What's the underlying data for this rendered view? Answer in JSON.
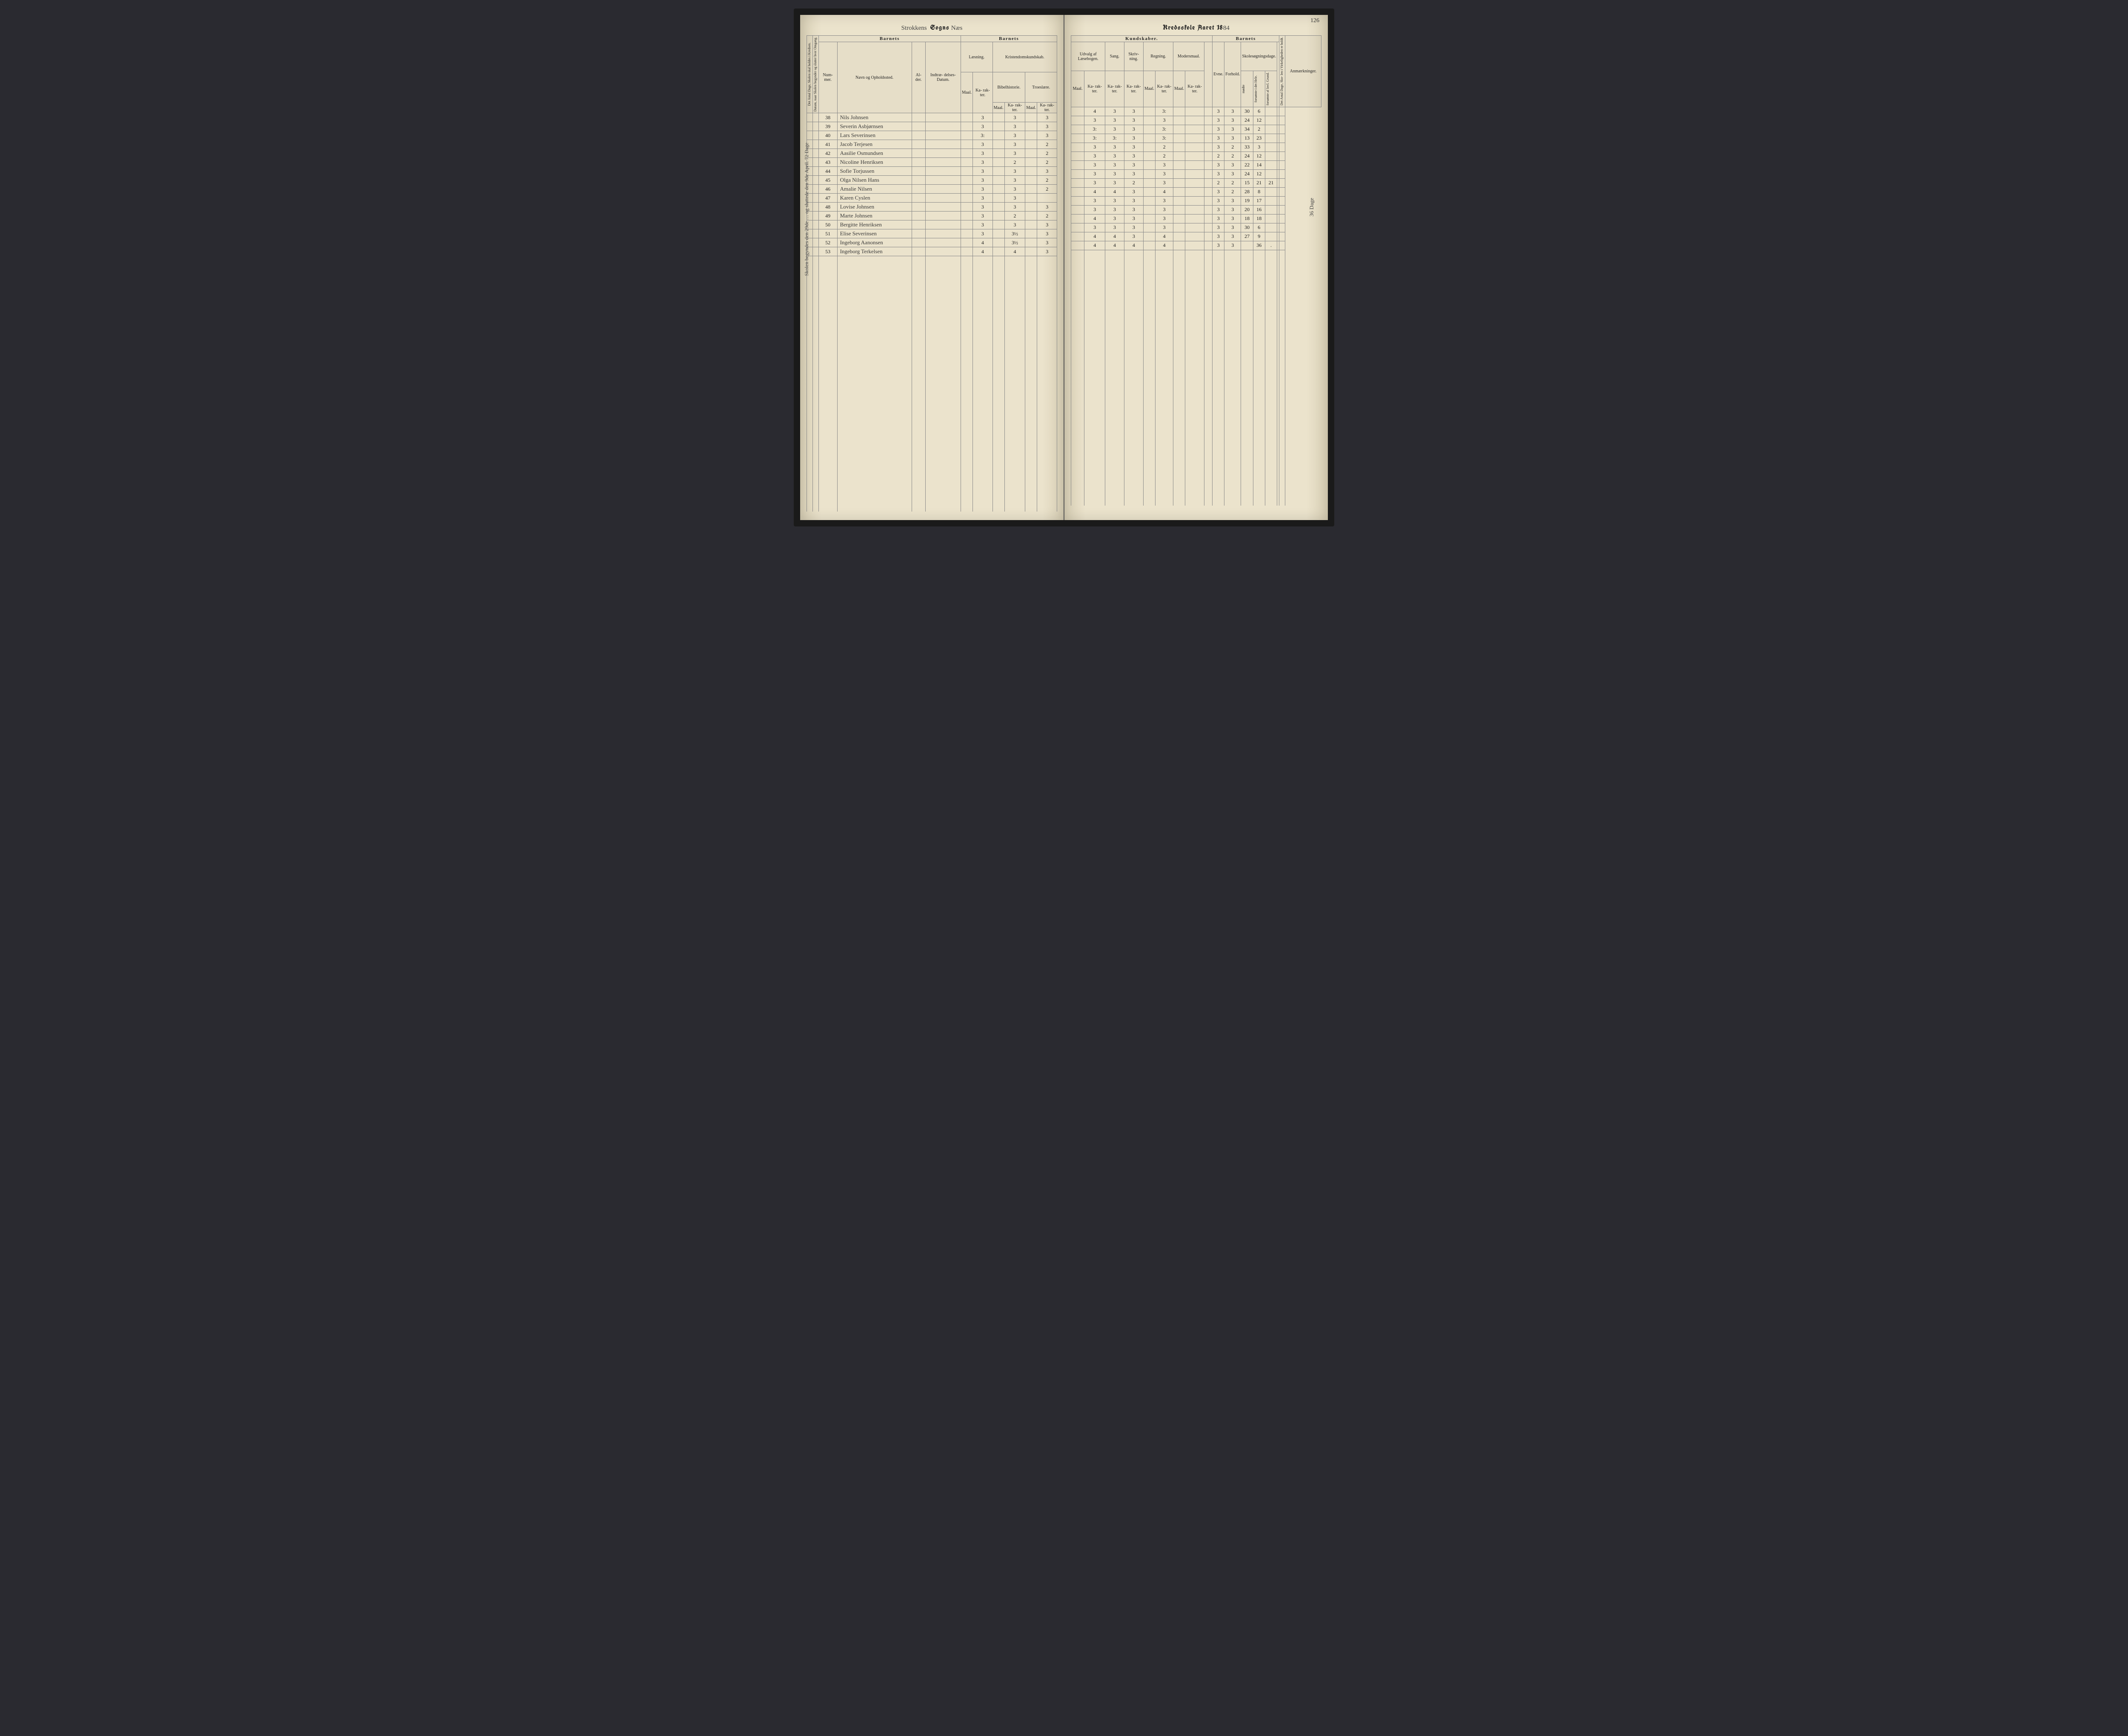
{
  "page_number": "126",
  "left_title": {
    "script1": "Strokkens",
    "print": "Sogns",
    "script2": "Næs"
  },
  "right_title": {
    "print1": "Kredsskole Aaret 18",
    "script": "84"
  },
  "side_note_left": "Skolen begyndes den 29de … og sluttede den 9de April.   72 Dage",
  "side_note_right": "36 Dage",
  "headers_left": {
    "col1": "Det Antal Dage, Skolen skal holdes i Kredsen.",
    "col2": "Datum, naar Skolen begynder og slutter hver Omgang.",
    "barnets": "Barnets",
    "nummer": "Num-\nmer.",
    "navn": "Navn og Opholdssted.",
    "alder": "Al-\nder.",
    "indtr": "Indtræ-\ndelses-\nDatum.",
    "barnets2": "Barnets",
    "laesning": "Læsning.",
    "kristen": "Kristendomskundskab.",
    "maal": "Maal.",
    "karakter": "Ka-\nrak-\nter.",
    "bibel": "Bibelhistorie.",
    "troes": "Troeslære."
  },
  "headers_right": {
    "kundskaber": "Kundskaber.",
    "udvalg": "Udvalg af\nLæsebogen.",
    "sang": "Sang.",
    "skriv": "Skriv-\nning.",
    "regning": "Regning.",
    "moders": "Modersmaal.",
    "maal": "Maal.",
    "karakter": "Ka-\nrak-\nter.",
    "barnets": "Barnets",
    "evne": "Evne.",
    "forhold": "Forhold.",
    "skoles": "Skolesøgningsdage.",
    "modte": "mødte",
    "fors1": "forsømte i\ndet Hele.",
    "fors2": "forsømte af\nlovl. Grund.",
    "antal": "Det Antal Dage, Sko-\nlen i Virkeligheden\ner holdt.",
    "anm": "Anmærkninger."
  },
  "rows": [
    {
      "num": "38",
      "name": "Nils Johnsen",
      "l_k": "3",
      "b_k": "3",
      "t_k": "3",
      "u_m": "",
      "u_k": "4",
      "sang": "3",
      "skriv": "3",
      "r_k": "3:",
      "evne": "3",
      "forhold": "3",
      "modte": "30",
      "f1": "6",
      "f2": ""
    },
    {
      "num": "39",
      "name": "Severin Asbjørnsen",
      "l_k": "3",
      "b_k": "3",
      "t_k": "3",
      "u_m": "",
      "u_k": "3",
      "sang": "3",
      "skriv": "3",
      "r_k": "3",
      "evne": "3",
      "forhold": "3",
      "modte": "24",
      "f1": "12",
      "f2": ""
    },
    {
      "num": "40",
      "name": "Lars Severinsen",
      "l_k": "3:",
      "b_k": "3",
      "t_k": "3",
      "u_m": "",
      "u_k": "3:",
      "sang": "3",
      "skriv": "3",
      "r_k": "3:",
      "evne": "3",
      "forhold": "3",
      "modte": "34",
      "f1": "2",
      "f2": ""
    },
    {
      "num": "41",
      "name": "Jacob Terjesen",
      "l_k": "3",
      "b_k": "3",
      "t_k": "2",
      "u_m": "",
      "u_k": "3:",
      "sang": "3:",
      "skriv": "3",
      "r_k": "3:",
      "evne": "3",
      "forhold": "3",
      "modte": "13",
      "f1": "23",
      "f2": ""
    },
    {
      "num": "42",
      "name": "Aasilie Osmundsen",
      "l_k": "3",
      "b_k": "3",
      "t_k": "2",
      "u_m": "",
      "u_k": "3",
      "sang": "3",
      "skriv": "3",
      "r_k": "2",
      "evne": "3",
      "forhold": "2",
      "modte": "33",
      "f1": "3",
      "f2": ""
    },
    {
      "num": "43",
      "name": "Nicoline Henriksen",
      "l_k": "3",
      "b_k": "2",
      "t_k": "2",
      "u_m": "",
      "u_k": "3",
      "sang": "3",
      "skriv": "3",
      "r_k": "2",
      "evne": "2",
      "forhold": "2",
      "modte": "24",
      "f1": "12",
      "f2": ""
    },
    {
      "num": "44",
      "name": "Sofie Torjussen",
      "l_k": "3",
      "b_k": "3",
      "t_k": "3",
      "u_m": "",
      "u_k": "3",
      "sang": "3",
      "skriv": "3",
      "r_k": "3",
      "evne": "3",
      "forhold": "3",
      "modte": "22",
      "f1": "14",
      "f2": ""
    },
    {
      "num": "45",
      "name": "Olga Nilsen Hans",
      "l_k": "3",
      "b_k": "3",
      "t_k": "2",
      "u_m": "",
      "u_k": "3",
      "sang": "3",
      "skriv": "3",
      "r_k": "3",
      "evne": "3",
      "forhold": "3",
      "modte": "24",
      "f1": "12",
      "f2": ""
    },
    {
      "num": "46",
      "name": "Amalie Nilsen",
      "l_k": "3",
      "b_k": "3",
      "t_k": "2",
      "u_m": "",
      "u_k": "3",
      "sang": "3",
      "skriv": "2",
      "r_k": "3",
      "evne": "2",
      "forhold": "2",
      "modte": "15",
      "f1": "21",
      "f2": "21"
    },
    {
      "num": "47",
      "name": "Karen Cyslen",
      "l_k": "3",
      "b_k": "3",
      "t_k": "",
      "u_m": "",
      "u_k": "4",
      "sang": "4",
      "skriv": "3",
      "r_k": "4",
      "evne": "3",
      "forhold": "2",
      "modte": "28",
      "f1": "8",
      "f2": ""
    },
    {
      "num": "48",
      "name": "Lovise Johnsen",
      "l_k": "3",
      "b_k": "3",
      "t_k": "3",
      "u_m": "",
      "u_k": "3",
      "sang": "3",
      "skriv": "3",
      "r_k": "3",
      "evne": "3",
      "forhold": "3",
      "modte": "19",
      "f1": "17",
      "f2": ""
    },
    {
      "num": "49",
      "name": "Marte Johnsen",
      "l_k": "3",
      "b_k": "2",
      "t_k": "2",
      "u_m": "",
      "u_k": "3",
      "sang": "3",
      "skriv": "3",
      "r_k": "3",
      "evne": "3",
      "forhold": "3",
      "modte": "20",
      "f1": "16",
      "f2": ""
    },
    {
      "num": "50",
      "name": "Bergitte Henriksen",
      "l_k": "3",
      "b_k": "3",
      "t_k": "3",
      "u_m": "",
      "u_k": "4",
      "sang": "3",
      "skriv": "3",
      "r_k": "3",
      "evne": "3",
      "forhold": "3",
      "modte": "18",
      "f1": "18",
      "f2": ""
    },
    {
      "num": "51",
      "name": "Elise Severinsen",
      "l_k": "3",
      "b_k": "3½",
      "t_k": "3",
      "u_m": "",
      "u_k": "3",
      "sang": "3",
      "skriv": "3",
      "r_k": "3",
      "evne": "3",
      "forhold": "3",
      "modte": "30",
      "f1": "6",
      "f2": ""
    },
    {
      "num": "52",
      "name": "Ingeborg Aanonsen",
      "l_k": "4",
      "b_k": "3½",
      "t_k": "3",
      "u_m": "",
      "u_k": "4",
      "sang": "4",
      "skriv": "3",
      "r_k": "4",
      "evne": "3",
      "forhold": "3",
      "modte": "27",
      "f1": "9",
      "f2": ""
    },
    {
      "num": "53",
      "name": "Ingeborg Terkelsen",
      "l_k": "4",
      "b_k": "4",
      "t_k": "3",
      "u_m": "",
      "u_k": "4",
      "sang": "4",
      "skriv": "4",
      "r_k": "4",
      "evne": "3",
      "forhold": "3",
      "modte": "",
      "f1": "36",
      "f2": "."
    }
  ],
  "blank_rows": 30
}
